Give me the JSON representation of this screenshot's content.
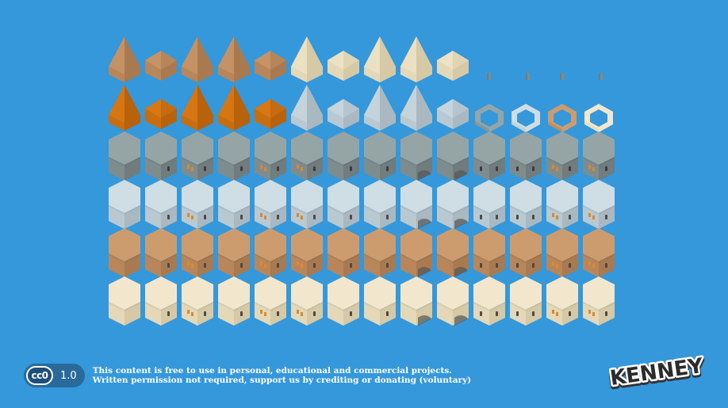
{
  "palette": {
    "background": "#3498db",
    "tan": {
      "top": "#cd9c6e",
      "left": "#b8865a",
      "right": "#a97a50",
      "door": "#4a4a4a",
      "win": "#e08a2a"
    },
    "orange": {
      "top": "#e07e15",
      "left": "#c86e10",
      "right": "#b8620c"
    },
    "cream": {
      "top": "#f2e7cc",
      "left": "#e4d8b8",
      "right": "#d6c9a6",
      "door": "#4a4a4a",
      "win": "#d88a2e"
    },
    "ice": {
      "top": "#cfdde4",
      "left": "#b9c9d1",
      "right": "#aab9c1",
      "door": "#4a4a4a",
      "win": "#d88a2e"
    },
    "gray": {
      "top": "#95a5a6",
      "left": "#7f8c8d",
      "right": "#707c7d",
      "door": "#3c3c3c",
      "win": "#d88a2e"
    }
  },
  "tiles": [
    {
      "row": 0,
      "kind": "spire",
      "color": "tan"
    },
    {
      "row": 0,
      "kind": "dome",
      "color": "tan"
    },
    {
      "row": 0,
      "kind": "spire",
      "color": "tan"
    },
    {
      "row": 0,
      "kind": "spire",
      "color": "tan"
    },
    {
      "row": 0,
      "kind": "dome",
      "color": "tan"
    },
    {
      "row": 0,
      "kind": "spire",
      "color": "cream"
    },
    {
      "row": 0,
      "kind": "dome",
      "color": "cream"
    },
    {
      "row": 0,
      "kind": "spire",
      "color": "cream"
    },
    {
      "row": 0,
      "kind": "spire",
      "color": "cream"
    },
    {
      "row": 0,
      "kind": "dome",
      "color": "cream"
    },
    {
      "row": 0,
      "kind": "chimney",
      "color": "gray"
    },
    {
      "row": 0,
      "kind": "chimney",
      "color": "gray"
    },
    {
      "row": 0,
      "kind": "chimney",
      "color": "gray"
    },
    {
      "row": 0,
      "kind": "chimney",
      "color": "gray"
    },
    {
      "row": 1,
      "kind": "spire",
      "color": "orange"
    },
    {
      "row": 1,
      "kind": "dome",
      "color": "orange"
    },
    {
      "row": 1,
      "kind": "spire",
      "color": "orange"
    },
    {
      "row": 1,
      "kind": "spire",
      "color": "orange"
    },
    {
      "row": 1,
      "kind": "dome",
      "color": "orange"
    },
    {
      "row": 1,
      "kind": "spire",
      "color": "ice"
    },
    {
      "row": 1,
      "kind": "dome",
      "color": "ice"
    },
    {
      "row": 1,
      "kind": "spire",
      "color": "ice"
    },
    {
      "row": 1,
      "kind": "spire",
      "color": "ice"
    },
    {
      "row": 1,
      "kind": "dome",
      "color": "ice"
    },
    {
      "row": 1,
      "kind": "ring",
      "color": "gray"
    },
    {
      "row": 1,
      "kind": "ring",
      "color": "ice"
    },
    {
      "row": 1,
      "kind": "ring",
      "color": "tan"
    },
    {
      "row": 1,
      "kind": "ring",
      "color": "cream"
    }
  ],
  "block_rows": [
    {
      "row": 2,
      "color": "gray"
    },
    {
      "row": 3,
      "color": "ice"
    },
    {
      "row": 4,
      "color": "tan"
    },
    {
      "row": 5,
      "color": "cream"
    }
  ],
  "block_variants": [
    "plain",
    "door",
    "door-win",
    "door",
    "door-win",
    "wins",
    "door",
    "door",
    "arch",
    "arch",
    "door2",
    "door2",
    "door-win",
    "door-win"
  ],
  "license": {
    "cc_label": "cc0",
    "version": "1.0",
    "line1": "This content is free to use in personal, educational and commercial projects.",
    "line2": "Written permission not required, support us by crediting or donating (voluntary)"
  },
  "logo_text": "KENNEY"
}
